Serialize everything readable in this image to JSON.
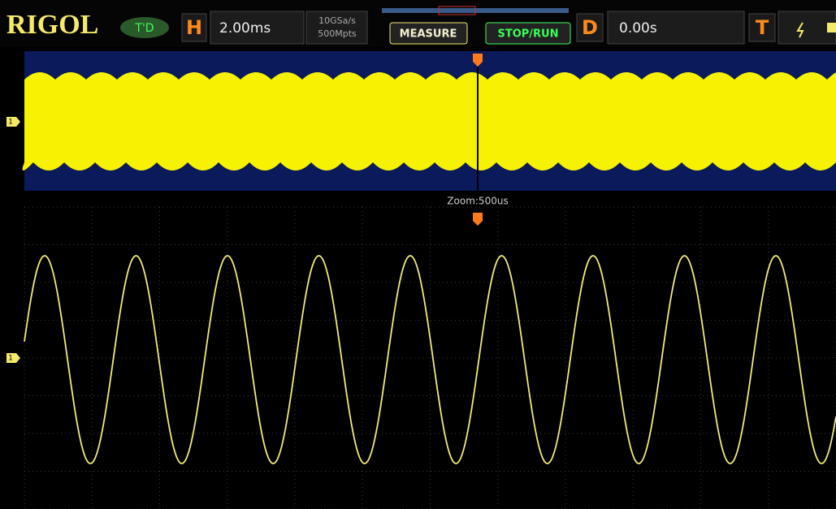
{
  "header": {
    "logo": "RIGOL",
    "mode": "T'D",
    "horizontal": {
      "label": "H",
      "timebase": "2.00ms",
      "sample_rate": "10GSa/s",
      "memory_depth": "500Mpts"
    },
    "buttons": [
      "MEASURE",
      "STOP/RUN"
    ],
    "delay": {
      "label": "D",
      "value": "0.00s"
    },
    "trigger": {
      "label": "T"
    }
  },
  "main_window": {
    "channel_marker": "1",
    "zoom_label": "Zoom:500us"
  },
  "zoom_window": {
    "channel_marker": "1"
  }
}
